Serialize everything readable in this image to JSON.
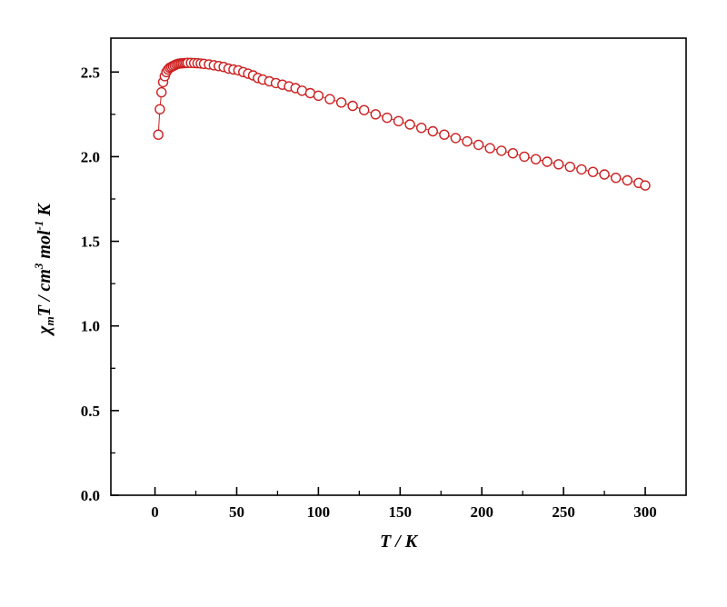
{
  "page": {
    "background": "#ffffff"
  },
  "chart_data": {
    "type": "scatter",
    "subtype": "scatter-with-line",
    "title": "",
    "xlabel": "T / K",
    "ylabel": "χmT / cm3 mol-1 K",
    "xlabel_parts": [
      {
        "t": "T",
        "s": "i"
      },
      {
        "t": " / K",
        "s": "i"
      }
    ],
    "ylabel_parts": [
      {
        "t": "χ",
        "s": "i"
      },
      {
        "t": "m",
        "s": "sub"
      },
      {
        "t": "T",
        "s": "i"
      },
      {
        "t": " / ",
        "s": "i"
      },
      {
        "t": "cm",
        "s": "i"
      },
      {
        "t": "3",
        "s": "sup"
      },
      {
        "t": " mol",
        "s": "i"
      },
      {
        "t": "-1",
        "s": "sup"
      },
      {
        "t": " K",
        "s": "i"
      }
    ],
    "xlim": [
      -27,
      325
    ],
    "ylim": [
      0,
      2.7
    ],
    "xticks": [
      {
        "v": 0,
        "label": "0"
      },
      {
        "v": 50,
        "label": "50"
      },
      {
        "v": 100,
        "label": "100"
      },
      {
        "v": 150,
        "label": "150"
      },
      {
        "v": 200,
        "label": "200"
      },
      {
        "v": 250,
        "label": "250"
      },
      {
        "v": 300,
        "label": "300"
      }
    ],
    "yticks": [
      {
        "v": 0.0,
        "label": "0.0"
      },
      {
        "v": 0.5,
        "label": "0.5"
      },
      {
        "v": 1.0,
        "label": "1.0"
      },
      {
        "v": 1.5,
        "label": "1.5"
      },
      {
        "v": 2.0,
        "label": "2.0"
      },
      {
        "v": 2.5,
        "label": "2.5"
      }
    ],
    "grid": false,
    "legend": "none",
    "marker_color": "#cc2020",
    "marker_fill": "#ffffff",
    "line_color": "#cc2020",
    "frame_color": "#000000",
    "series": [
      {
        "name": "chi_m T vs T",
        "points": [
          [
            2,
            2.13
          ],
          [
            3,
            2.28
          ],
          [
            4,
            2.38
          ],
          [
            5,
            2.44
          ],
          [
            6,
            2.475
          ],
          [
            7,
            2.5
          ],
          [
            8,
            2.515
          ],
          [
            9,
            2.525
          ],
          [
            10,
            2.53
          ],
          [
            11,
            2.535
          ],
          [
            12,
            2.54
          ],
          [
            13,
            2.545
          ],
          [
            14,
            2.548
          ],
          [
            15,
            2.55
          ],
          [
            16,
            2.551
          ],
          [
            17,
            2.552
          ],
          [
            18,
            2.553
          ],
          [
            19,
            2.553
          ],
          [
            20,
            2.554
          ],
          [
            22,
            2.554
          ],
          [
            24,
            2.553
          ],
          [
            26,
            2.552
          ],
          [
            28,
            2.55
          ],
          [
            30,
            2.548
          ],
          [
            33,
            2.545
          ],
          [
            36,
            2.54
          ],
          [
            39,
            2.535
          ],
          [
            42,
            2.53
          ],
          [
            45,
            2.52
          ],
          [
            48,
            2.515
          ],
          [
            51,
            2.51
          ],
          [
            54,
            2.5
          ],
          [
            57,
            2.49
          ],
          [
            60,
            2.48
          ],
          [
            63,
            2.465
          ],
          [
            66,
            2.455
          ],
          [
            70,
            2.445
          ],
          [
            74,
            2.435
          ],
          [
            78,
            2.425
          ],
          [
            82,
            2.415
          ],
          [
            86,
            2.405
          ],
          [
            90,
            2.39
          ],
          [
            95,
            2.375
          ],
          [
            100,
            2.36
          ],
          [
            107,
            2.34
          ],
          [
            114,
            2.32
          ],
          [
            121,
            2.3
          ],
          [
            128,
            2.275
          ],
          [
            135,
            2.25
          ],
          [
            142,
            2.23
          ],
          [
            149,
            2.21
          ],
          [
            156,
            2.19
          ],
          [
            163,
            2.17
          ],
          [
            170,
            2.15
          ],
          [
            177,
            2.13
          ],
          [
            184,
            2.11
          ],
          [
            191,
            2.09
          ],
          [
            198,
            2.07
          ],
          [
            205,
            2.05
          ],
          [
            212,
            2.035
          ],
          [
            219,
            2.02
          ],
          [
            226,
            2.0
          ],
          [
            233,
            1.985
          ],
          [
            240,
            1.97
          ],
          [
            247,
            1.955
          ],
          [
            254,
            1.94
          ],
          [
            261,
            1.925
          ],
          [
            268,
            1.91
          ],
          [
            275,
            1.895
          ],
          [
            282,
            1.875
          ],
          [
            289,
            1.86
          ],
          [
            296,
            1.845
          ],
          [
            300,
            1.83
          ]
        ]
      }
    ]
  }
}
